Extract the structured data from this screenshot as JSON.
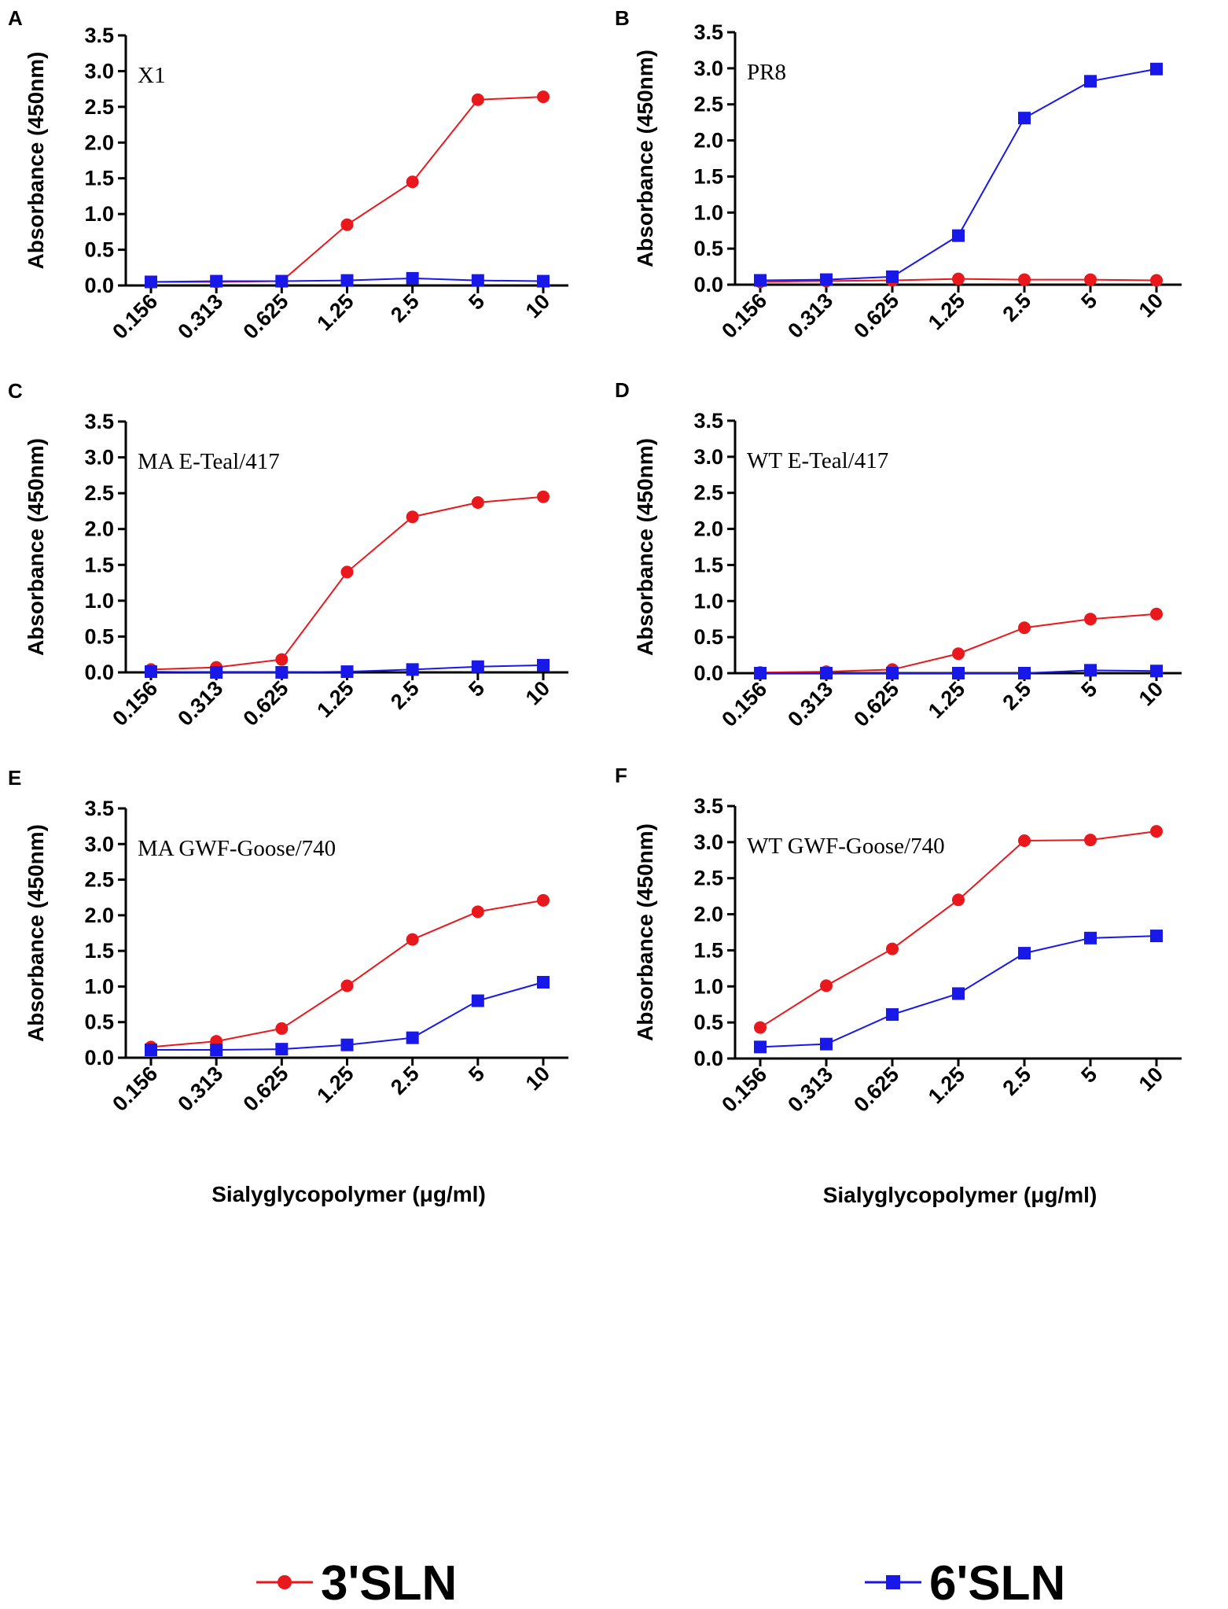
{
  "legend": [
    {
      "label": "3'SLN",
      "color": "#e8181c",
      "marker": "circle"
    },
    {
      "label": "6'SLN",
      "color": "#1818e8",
      "marker": "square"
    }
  ],
  "colors": {
    "series1": "#e8181c",
    "series2": "#1818e8",
    "axis": "#000000"
  },
  "chart_data": [
    {
      "type": "line",
      "panel": "A",
      "title": "X1",
      "categories": [
        "0.156",
        "0.313",
        "0.625",
        "1.25",
        "2.5",
        "5",
        "10"
      ],
      "ylabel": "Absorbance (450nm)",
      "xlabel": "",
      "ylim": [
        0,
        3.5
      ],
      "yticks": [
        "0.0",
        "0.5",
        "1.0",
        "1.5",
        "2.0",
        "2.5",
        "3.0",
        "3.5"
      ],
      "series": [
        {
          "name": "3'SLN",
          "values": [
            0.05,
            0.05,
            0.06,
            0.85,
            1.45,
            2.6,
            2.64
          ]
        },
        {
          "name": "6'SLN",
          "values": [
            0.05,
            0.06,
            0.06,
            0.07,
            0.1,
            0.07,
            0.06
          ]
        }
      ]
    },
    {
      "type": "line",
      "panel": "B",
      "title": "PR8",
      "categories": [
        "0.156",
        "0.313",
        "0.625",
        "1.25",
        "2.5",
        "5",
        "10"
      ],
      "ylabel": "Absorbance (450nm)",
      "xlabel": "",
      "ylim": [
        0,
        3.5
      ],
      "yticks": [
        "0.0",
        "0.5",
        "1.0",
        "1.5",
        "2.0",
        "2.5",
        "3.0",
        "3.5"
      ],
      "series": [
        {
          "name": "3'SLN",
          "values": [
            0.04,
            0.05,
            0.06,
            0.08,
            0.07,
            0.07,
            0.06
          ]
        },
        {
          "name": "6'SLN",
          "values": [
            0.06,
            0.07,
            0.11,
            0.68,
            2.31,
            2.82,
            2.99
          ]
        }
      ]
    },
    {
      "type": "line",
      "panel": "C",
      "title": "MA E-Teal/417",
      "categories": [
        "0.156",
        "0.313",
        "0.625",
        "1.25",
        "2.5",
        "5",
        "10"
      ],
      "ylabel": "Absorbance (450nm)",
      "xlabel": "",
      "ylim": [
        0,
        3.5
      ],
      "yticks": [
        "0.0",
        "0.5",
        "1.0",
        "1.5",
        "2.0",
        "2.5",
        "3.0",
        "3.5"
      ],
      "series": [
        {
          "name": "3'SLN",
          "values": [
            0.04,
            0.07,
            0.18,
            1.4,
            2.17,
            2.37,
            2.45
          ]
        },
        {
          "name": "6'SLN",
          "values": [
            0.01,
            0.0,
            0.0,
            0.01,
            0.04,
            0.08,
            0.1
          ]
        }
      ]
    },
    {
      "type": "line",
      "panel": "D",
      "title": "WT E-Teal/417",
      "categories": [
        "0.156",
        "0.313",
        "0.625",
        "1.25",
        "2.5",
        "5",
        "10"
      ],
      "ylabel": "Absorbance (450nm)",
      "xlabel": "",
      "ylim": [
        0,
        3.5
      ],
      "yticks": [
        "0.0",
        "0.5",
        "1.0",
        "1.5",
        "2.0",
        "2.5",
        "3.0",
        "3.5"
      ],
      "series": [
        {
          "name": "3'SLN",
          "values": [
            0.01,
            0.02,
            0.05,
            0.27,
            0.63,
            0.75,
            0.82
          ]
        },
        {
          "name": "6'SLN",
          "values": [
            0.0,
            0.0,
            0.0,
            0.0,
            0.0,
            0.04,
            0.03
          ]
        }
      ]
    },
    {
      "type": "line",
      "panel": "E",
      "title": "MA GWF-Goose/740",
      "categories": [
        "0.156",
        "0.313",
        "0.625",
        "1.25",
        "2.5",
        "5",
        "10"
      ],
      "ylabel": "Absorbance (450nm)",
      "xlabel": "Sialyglycopolymer (μg/ml)",
      "ylim": [
        0,
        3.5
      ],
      "yticks": [
        "0.0",
        "0.5",
        "1.0",
        "1.5",
        "2.0",
        "2.5",
        "3.0",
        "3.5"
      ],
      "series": [
        {
          "name": "3'SLN",
          "values": [
            0.15,
            0.23,
            0.41,
            1.01,
            1.66,
            2.05,
            2.21
          ]
        },
        {
          "name": "6'SLN",
          "values": [
            0.11,
            0.11,
            0.12,
            0.18,
            0.28,
            0.8,
            1.06
          ]
        }
      ]
    },
    {
      "type": "line",
      "panel": "F",
      "title": "WT GWF-Goose/740",
      "categories": [
        "0.156",
        "0.313",
        "0.625",
        "1.25",
        "2.5",
        "5",
        "10"
      ],
      "ylabel": "Absorbance (450nm)",
      "xlabel": "Sialyglycopolymer (μg/ml)",
      "ylim": [
        0,
        3.5
      ],
      "yticks": [
        "0.0",
        "0.5",
        "1.0",
        "1.5",
        "2.0",
        "2.5",
        "3.0",
        "3.5"
      ],
      "series": [
        {
          "name": "3'SLN",
          "values": [
            0.43,
            1.01,
            1.52,
            2.2,
            3.02,
            3.03,
            3.15
          ]
        },
        {
          "name": "6'SLN",
          "values": [
            0.16,
            0.2,
            0.61,
            0.9,
            1.46,
            1.67,
            1.7
          ]
        }
      ]
    }
  ]
}
